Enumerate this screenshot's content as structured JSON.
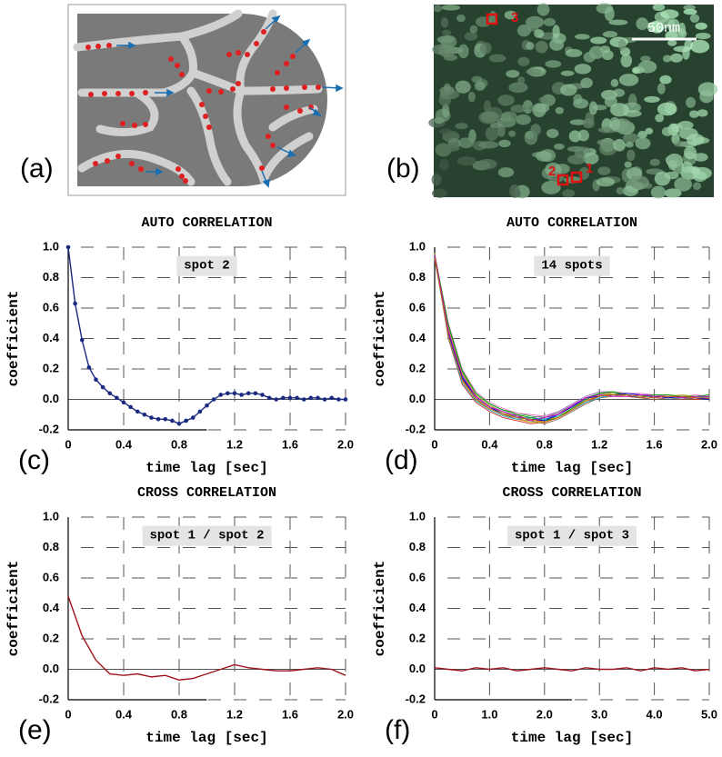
{
  "panels": {
    "a": {
      "label": "(a)"
    },
    "b": {
      "label": "(b)",
      "scale_bar": "50nm",
      "spots": [
        "1",
        "2",
        "3"
      ]
    }
  },
  "chart_data": [
    {
      "type": "line",
      "label": "(c)",
      "title": "AUTO CORRELATION",
      "annotation": "spot 2",
      "xlabel": "time lag [sec]",
      "ylabel": "coefficient",
      "markers": true,
      "grid": true,
      "x": [
        0,
        0.05,
        0.1,
        0.15,
        0.2,
        0.25,
        0.3,
        0.35,
        0.4,
        0.45,
        0.5,
        0.55,
        0.6,
        0.65,
        0.7,
        0.75,
        0.8,
        0.85,
        0.9,
        0.95,
        1.0,
        1.05,
        1.1,
        1.15,
        1.2,
        1.25,
        1.3,
        1.35,
        1.4,
        1.45,
        1.5,
        1.55,
        1.6,
        1.65,
        1.7,
        1.75,
        1.8,
        1.85,
        1.9,
        1.95,
        2.0
      ],
      "series": [
        {
          "color": "#1a2a80",
          "values": [
            1.0,
            0.63,
            0.39,
            0.21,
            0.13,
            0.08,
            0.04,
            0.01,
            -0.02,
            -0.05,
            -0.08,
            -0.1,
            -0.12,
            -0.13,
            -0.13,
            -0.14,
            -0.16,
            -0.14,
            -0.12,
            -0.08,
            -0.04,
            0.0,
            0.03,
            0.04,
            0.04,
            0.03,
            0.04,
            0.04,
            0.03,
            0.01,
            0.0,
            0.01,
            0.01,
            0.01,
            0.0,
            0.01,
            0.01,
            0.0,
            0.01,
            0.0,
            0.0
          ]
        }
      ],
      "xlim": [
        0,
        2
      ],
      "ylim": [
        -0.2,
        1.0
      ],
      "xticks": [
        0,
        0.4,
        0.8,
        1.2,
        1.6,
        {
          "value": 2,
          "label": "2.0"
        }
      ],
      "yticks": [
        -0.2,
        {
          "value": 0,
          "label": "0.0"
        },
        0.2,
        0.4,
        0.6,
        0.8,
        {
          "value": 1,
          "label": "1.0"
        }
      ]
    },
    {
      "type": "line",
      "label": "(d)",
      "title": "AUTO CORRELATION",
      "annotation": "14 spots",
      "xlabel": "time lag [sec]",
      "ylabel": "coefficient",
      "markers": false,
      "grid": true,
      "x": [
        0,
        0.1,
        0.2,
        0.3,
        0.4,
        0.5,
        0.6,
        0.7,
        0.8,
        0.9,
        1.0,
        1.1,
        1.2,
        1.3,
        1.4,
        1.5,
        1.6,
        1.7,
        1.8,
        1.9,
        2.0
      ],
      "series": [
        {
          "color": "#1f77b4",
          "values": [
            0.95,
            0.45,
            0.15,
            0.02,
            -0.05,
            -0.09,
            -0.11,
            -0.13,
            -0.13,
            -0.1,
            -0.05,
            0.0,
            0.03,
            0.03,
            0.02,
            0.02,
            0.02,
            0.01,
            0.02,
            0.01,
            0.01
          ]
        },
        {
          "color": "#ff7f0e",
          "values": [
            0.93,
            0.42,
            0.12,
            0.0,
            -0.07,
            -0.11,
            -0.13,
            -0.15,
            -0.14,
            -0.11,
            -0.06,
            -0.01,
            0.02,
            0.04,
            0.03,
            0.02,
            0.03,
            0.02,
            0.01,
            0.02,
            0.0
          ]
        },
        {
          "color": "#2ca02c",
          "values": [
            0.96,
            0.48,
            0.18,
            0.04,
            -0.03,
            -0.07,
            -0.09,
            -0.11,
            -0.12,
            -0.09,
            -0.04,
            0.01,
            0.04,
            0.04,
            0.03,
            0.02,
            0.01,
            0.02,
            0.02,
            0.01,
            0.02
          ]
        },
        {
          "color": "#d62728",
          "values": [
            0.94,
            0.4,
            0.1,
            -0.02,
            -0.08,
            -0.12,
            -0.14,
            -0.16,
            -0.15,
            -0.12,
            -0.07,
            -0.02,
            0.02,
            0.03,
            0.02,
            0.01,
            0.02,
            0.01,
            0.01,
            0.0,
            0.01
          ]
        },
        {
          "color": "#9467bd",
          "values": [
            0.95,
            0.47,
            0.16,
            0.03,
            -0.04,
            -0.08,
            -0.12,
            -0.12,
            -0.11,
            -0.08,
            -0.03,
            0.02,
            0.05,
            0.05,
            0.04,
            0.03,
            0.03,
            0.02,
            0.03,
            0.02,
            0.02
          ]
        },
        {
          "color": "#8c564b",
          "values": [
            0.92,
            0.44,
            0.14,
            0.01,
            -0.06,
            -0.1,
            -0.1,
            -0.14,
            -0.16,
            -0.13,
            -0.08,
            -0.03,
            0.01,
            0.02,
            0.02,
            0.01,
            0.0,
            0.01,
            0.0,
            0.01,
            0.0
          ]
        },
        {
          "color": "#e377c2",
          "values": [
            0.95,
            0.5,
            0.2,
            0.05,
            -0.02,
            -0.06,
            -0.09,
            -0.1,
            -0.11,
            -0.09,
            -0.05,
            0.0,
            0.03,
            0.05,
            0.04,
            0.04,
            0.03,
            0.03,
            0.02,
            0.03,
            0.02
          ]
        },
        {
          "color": "#7f7f7f",
          "values": [
            0.94,
            0.43,
            0.13,
            0.01,
            -0.06,
            -0.1,
            -0.13,
            -0.14,
            -0.12,
            -0.09,
            -0.04,
            0.01,
            0.03,
            0.02,
            0.03,
            0.02,
            0.01,
            0.02,
            0.01,
            0.01,
            0.02
          ]
        },
        {
          "color": "#bcbd22",
          "values": [
            0.96,
            0.46,
            0.17,
            0.03,
            -0.04,
            -0.09,
            -0.12,
            -0.15,
            -0.15,
            -0.11,
            -0.06,
            -0.01,
            0.03,
            0.04,
            0.02,
            0.03,
            0.02,
            0.02,
            0.03,
            0.02,
            0.01
          ]
        },
        {
          "color": "#17becf",
          "values": [
            0.93,
            0.41,
            0.11,
            -0.01,
            -0.07,
            -0.11,
            -0.13,
            -0.12,
            -0.13,
            -0.11,
            -0.07,
            -0.02,
            0.01,
            0.03,
            0.03,
            0.02,
            0.02,
            0.01,
            0.01,
            0.02,
            0.01
          ]
        },
        {
          "color": "#00a000",
          "values": [
            0.95,
            0.49,
            0.19,
            0.04,
            -0.03,
            -0.07,
            -0.1,
            -0.12,
            -0.14,
            -0.12,
            -0.06,
            0.0,
            0.04,
            0.05,
            0.03,
            0.02,
            0.03,
            0.03,
            0.02,
            0.02,
            0.03
          ]
        },
        {
          "color": "#0000cc",
          "values": [
            0.94,
            0.44,
            0.14,
            0.02,
            -0.05,
            -0.1,
            -0.12,
            -0.13,
            -0.14,
            -0.1,
            -0.05,
            0.01,
            0.02,
            0.03,
            0.04,
            0.03,
            0.02,
            0.01,
            0.02,
            0.01,
            0.0
          ]
        },
        {
          "color": "#cc00cc",
          "values": [
            0.95,
            0.45,
            0.16,
            0.02,
            -0.05,
            -0.08,
            -0.11,
            -0.14,
            -0.12,
            -0.1,
            -0.04,
            0.01,
            0.03,
            0.02,
            0.02,
            0.03,
            0.02,
            0.02,
            0.01,
            0.02,
            0.02
          ]
        },
        {
          "color": "#cc6600",
          "values": [
            0.93,
            0.42,
            0.13,
            0.0,
            -0.06,
            -0.1,
            -0.12,
            -0.13,
            -0.15,
            -0.12,
            -0.07,
            -0.01,
            0.02,
            0.03,
            0.03,
            0.02,
            0.01,
            0.02,
            0.02,
            0.01,
            0.01
          ]
        }
      ],
      "xlim": [
        0,
        2
      ],
      "ylim": [
        -0.2,
        1.0
      ],
      "xticks": [
        0,
        0.4,
        0.8,
        1.2,
        1.6,
        {
          "value": 2,
          "label": "2.0"
        }
      ],
      "yticks": [
        -0.2,
        {
          "value": 0,
          "label": "0.0"
        },
        0.2,
        0.4,
        0.6,
        0.8,
        {
          "value": 1,
          "label": "1.0"
        }
      ]
    },
    {
      "type": "line",
      "label": "(e)",
      "title": "CROSS CORRELATION",
      "annotation": "spot 1  /  spot 2",
      "xlabel": "time lag [sec]",
      "ylabel": "coefficient",
      "markers": false,
      "grid": true,
      "x": [
        0,
        0.1,
        0.2,
        0.3,
        0.4,
        0.5,
        0.6,
        0.7,
        0.8,
        0.9,
        1.0,
        1.1,
        1.2,
        1.3,
        1.4,
        1.5,
        1.6,
        1.7,
        1.8,
        1.9,
        2.0
      ],
      "series": [
        {
          "color": "#a0141e",
          "values": [
            0.48,
            0.22,
            0.06,
            -0.03,
            -0.04,
            -0.03,
            -0.05,
            -0.04,
            -0.07,
            -0.06,
            -0.03,
            0.0,
            0.03,
            0.01,
            0.0,
            -0.01,
            -0.01,
            0.0,
            0.01,
            0.0,
            -0.04
          ]
        }
      ],
      "xlim": [
        0,
        2
      ],
      "ylim": [
        -0.2,
        1.0
      ],
      "xticks": [
        0,
        0.4,
        0.8,
        1.2,
        1.6,
        {
          "value": 2,
          "label": "2.0"
        }
      ],
      "yticks": [
        -0.2,
        {
          "value": 0,
          "label": "0.0"
        },
        0.2,
        0.4,
        0.6,
        0.8,
        {
          "value": 1,
          "label": "1.0"
        }
      ]
    },
    {
      "type": "line",
      "label": "(f)",
      "title": "CROSS CORRELATION",
      "annotation": "spot 1  /  spot 3",
      "xlabel": "time lag [sec]",
      "ylabel": "coefficient",
      "markers": false,
      "grid": true,
      "x": [
        0,
        0.25,
        0.5,
        0.75,
        1.0,
        1.25,
        1.5,
        1.75,
        2.0,
        2.25,
        2.5,
        2.75,
        3.0,
        3.25,
        3.5,
        3.75,
        4.0,
        4.25,
        4.5,
        4.75,
        5.0
      ],
      "series": [
        {
          "color": "#a0141e",
          "values": [
            0.01,
            0.0,
            -0.01,
            0.01,
            0.0,
            0.01,
            -0.01,
            0.0,
            0.01,
            0.0,
            -0.01,
            0.01,
            0.0,
            0.0,
            0.01,
            -0.01,
            0.01,
            0.0,
            0.01,
            -0.01,
            0.0
          ]
        }
      ],
      "xlim": [
        0,
        5
      ],
      "ylim": [
        -0.2,
        1.0
      ],
      "xticks": [
        0,
        {
          "value": 1,
          "label": "1.0"
        },
        {
          "value": 2,
          "label": "2.0"
        },
        {
          "value": 3,
          "label": "3.0"
        },
        {
          "value": 4,
          "label": "4.0"
        },
        {
          "value": 5,
          "label": "5.0"
        }
      ],
      "yticks": [
        -0.2,
        {
          "value": 0,
          "label": "0.0"
        },
        0.2,
        0.4,
        0.6,
        0.8,
        {
          "value": 1,
          "label": "1.0"
        }
      ]
    }
  ]
}
